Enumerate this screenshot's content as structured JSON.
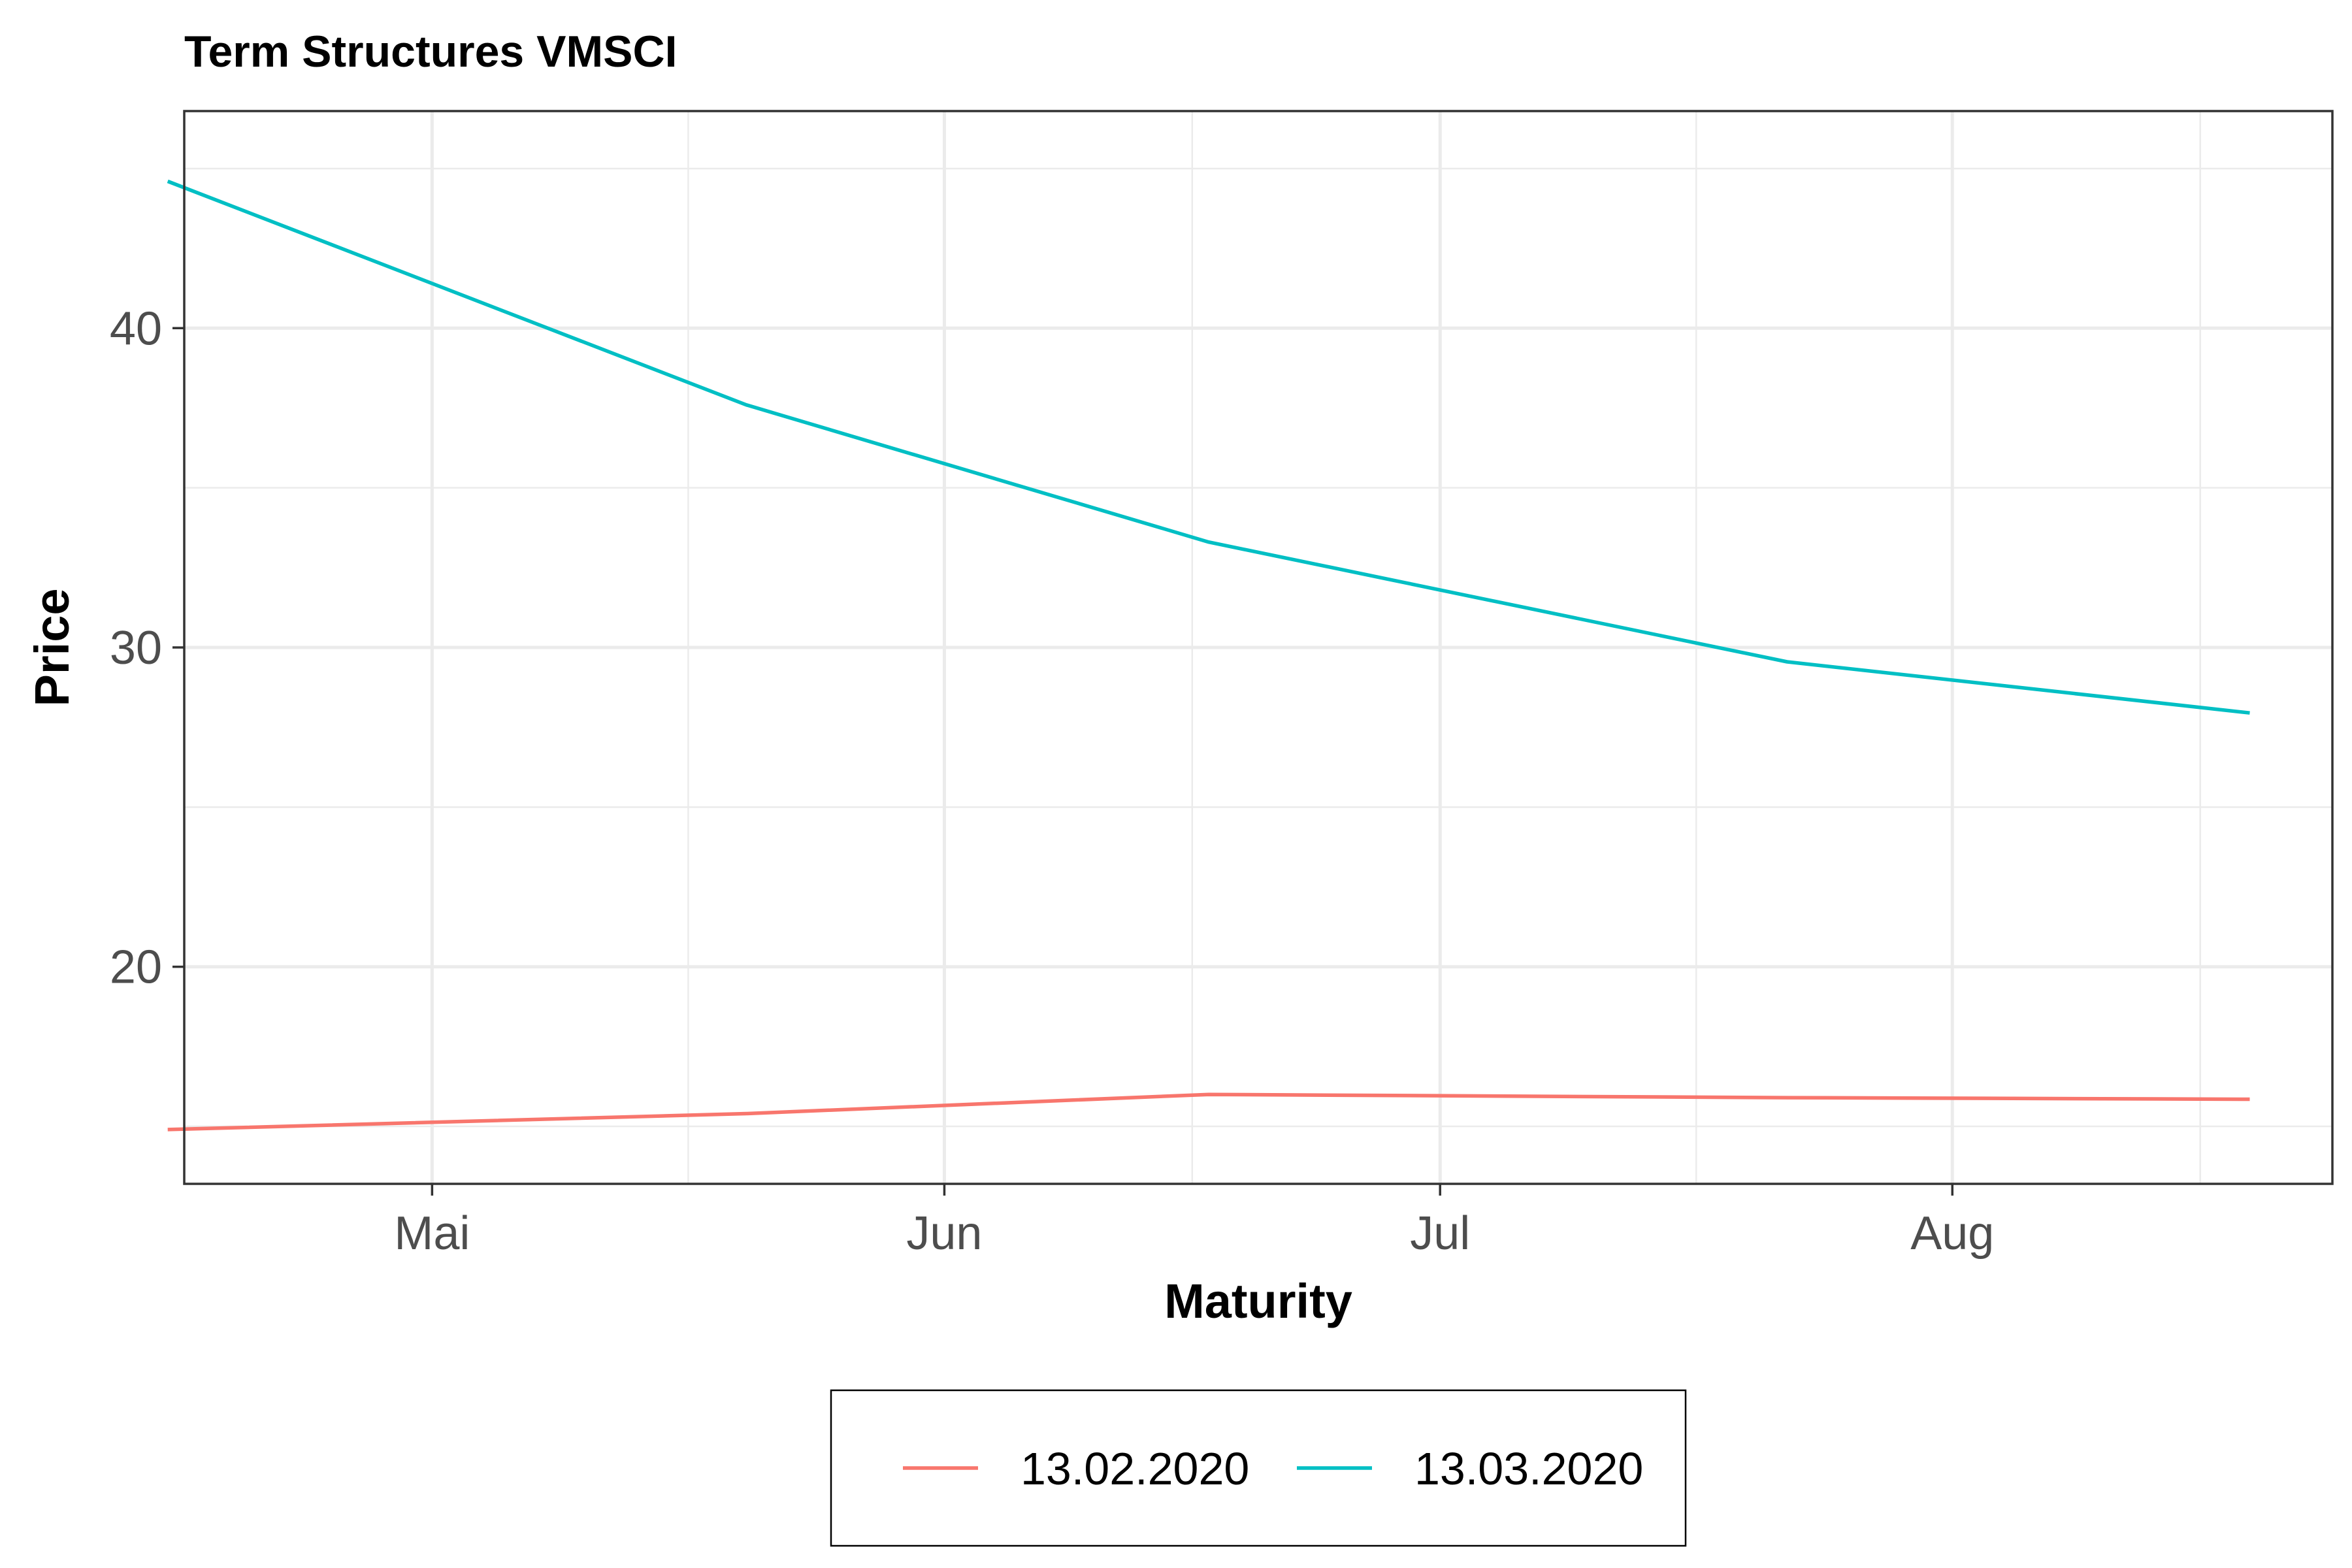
{
  "chart_data": {
    "type": "line",
    "title": "Term Structures VMSCI",
    "xlabel": "Maturity",
    "ylabel": "Price",
    "x_scale": "date",
    "xlim": [
      "2020-04-16",
      "2020-08-24"
    ],
    "ylim": [
      13.2,
      46.8
    ],
    "x_ticks": [
      {
        "value": "2020-05-01",
        "label": "Mai"
      },
      {
        "value": "2020-06-01",
        "label": "Jun"
      },
      {
        "value": "2020-07-01",
        "label": "Jul"
      },
      {
        "value": "2020-08-01",
        "label": "Aug"
      }
    ],
    "y_ticks": [
      {
        "value": 20,
        "label": "20"
      },
      {
        "value": 30,
        "label": "30"
      },
      {
        "value": 40,
        "label": "40"
      }
    ],
    "grid": true,
    "legend_position": "bottom",
    "series": [
      {
        "name": "13.02.2020",
        "color": "#F8766D",
        "x": [
          "2020-04-15",
          "2020-05-20",
          "2020-06-17",
          "2020-07-22",
          "2020-08-19"
        ],
        "y": [
          14.9,
          15.4,
          16.0,
          15.9,
          15.85
        ]
      },
      {
        "name": "13.03.2020",
        "color": "#00BFC4",
        "x": [
          "2020-04-15",
          "2020-05-20",
          "2020-06-17",
          "2020-07-22",
          "2020-08-19"
        ],
        "y": [
          44.6,
          37.6,
          33.3,
          29.55,
          27.95
        ]
      }
    ]
  }
}
